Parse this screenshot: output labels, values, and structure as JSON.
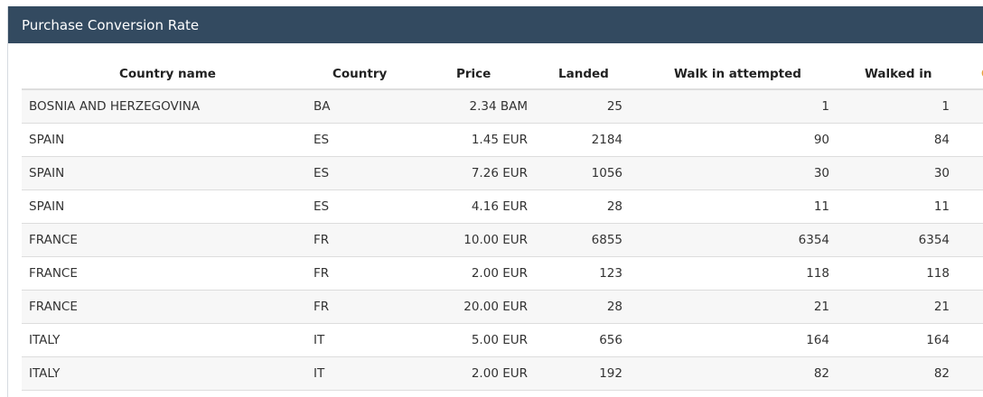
{
  "panel": {
    "title": "Purchase Conversion Rate"
  },
  "table": {
    "headers": {
      "country_name": "Country name",
      "country": "Country",
      "price": "Price",
      "landed": "Landed",
      "walk_in_attempted": "Walk in attempted",
      "walked_in": "Walked in",
      "overflow": "C"
    },
    "rows": [
      {
        "country_name": "BOSNIA AND HERZEGOVINA",
        "country": "BA",
        "price": "2.34 BAM",
        "landed": "25",
        "walk_in_attempted": "1",
        "walked_in": "1"
      },
      {
        "country_name": "SPAIN",
        "country": "ES",
        "price": "1.45 EUR",
        "landed": "2184",
        "walk_in_attempted": "90",
        "walked_in": "84"
      },
      {
        "country_name": "SPAIN",
        "country": "ES",
        "price": "7.26 EUR",
        "landed": "1056",
        "walk_in_attempted": "30",
        "walked_in": "30"
      },
      {
        "country_name": "SPAIN",
        "country": "ES",
        "price": "4.16 EUR",
        "landed": "28",
        "walk_in_attempted": "11",
        "walked_in": "11"
      },
      {
        "country_name": "FRANCE",
        "country": "FR",
        "price": "10.00 EUR",
        "landed": "6855",
        "walk_in_attempted": "6354",
        "walked_in": "6354"
      },
      {
        "country_name": "FRANCE",
        "country": "FR",
        "price": "2.00 EUR",
        "landed": "123",
        "walk_in_attempted": "118",
        "walked_in": "118"
      },
      {
        "country_name": "FRANCE",
        "country": "FR",
        "price": "20.00 EUR",
        "landed": "28",
        "walk_in_attempted": "21",
        "walked_in": "21"
      },
      {
        "country_name": "ITALY",
        "country": "IT",
        "price": "5.00 EUR",
        "landed": "656",
        "walk_in_attempted": "164",
        "walked_in": "164"
      },
      {
        "country_name": "ITALY",
        "country": "IT",
        "price": "2.00 EUR",
        "landed": "192",
        "walk_in_attempted": "82",
        "walked_in": "82"
      }
    ]
  }
}
